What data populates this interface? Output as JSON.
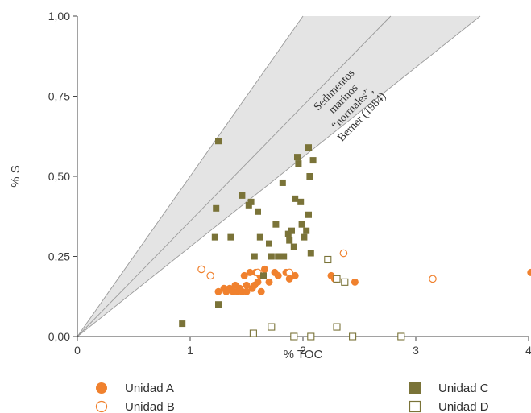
{
  "chart_data": {
    "type": "scatter",
    "xlabel": "% TOC",
    "ylabel": "% S",
    "xlim": [
      0,
      4
    ],
    "ylim": [
      0,
      1
    ],
    "x_ticks": [
      "0",
      "1",
      "2",
      "3",
      "4"
    ],
    "y_ticks": [
      "0,00",
      "0,25",
      "0,50",
      "0,75",
      "1,00"
    ],
    "band": {
      "label_lines": [
        "Sedimentos",
        "marinos",
        "“normales”,",
        "Berner (1984)"
      ],
      "lower_slope": 0.28,
      "center_slope": 0.36,
      "upper_slope": 0.5,
      "fill_color": "#e4e4e4",
      "line_color": "#9a9a9a"
    },
    "series": [
      {
        "name": "Unidad A",
        "marker": "filled-circle",
        "color": "#f0812e",
        "points": [
          [
            1.25,
            0.14
          ],
          [
            1.3,
            0.15
          ],
          [
            1.32,
            0.14
          ],
          [
            1.35,
            0.15
          ],
          [
            1.38,
            0.14
          ],
          [
            1.4,
            0.16
          ],
          [
            1.42,
            0.14
          ],
          [
            1.44,
            0.15
          ],
          [
            1.46,
            0.14
          ],
          [
            1.48,
            0.19
          ],
          [
            1.5,
            0.16
          ],
          [
            1.5,
            0.14
          ],
          [
            1.53,
            0.2
          ],
          [
            1.55,
            0.15
          ],
          [
            1.57,
            0.16
          ],
          [
            1.58,
            0.2
          ],
          [
            1.6,
            0.17
          ],
          [
            1.62,
            0.19
          ],
          [
            1.63,
            0.14
          ],
          [
            1.66,
            0.21
          ],
          [
            1.7,
            0.17
          ],
          [
            1.75,
            0.2
          ],
          [
            1.78,
            0.19
          ],
          [
            1.85,
            0.2
          ],
          [
            1.88,
            0.18
          ],
          [
            1.93,
            0.19
          ],
          [
            2.25,
            0.19
          ],
          [
            2.28,
            0.18
          ],
          [
            2.46,
            0.17
          ],
          [
            4.02,
            0.2
          ]
        ]
      },
      {
        "name": "Unidad B",
        "marker": "open-circle",
        "color": "#f0812e",
        "points": [
          [
            1.1,
            0.21
          ],
          [
            1.18,
            0.19
          ],
          [
            1.6,
            0.2
          ],
          [
            1.88,
            0.2
          ],
          [
            2.36,
            0.26
          ],
          [
            2.3,
            0.18
          ],
          [
            3.15,
            0.18
          ]
        ]
      },
      {
        "name": "Unidad C",
        "marker": "filled-square",
        "color": "#7a7338",
        "points": [
          [
            0.93,
            0.04
          ],
          [
            1.22,
            0.31
          ],
          [
            1.23,
            0.4
          ],
          [
            1.25,
            0.61
          ],
          [
            1.25,
            0.1
          ],
          [
            1.36,
            0.31
          ],
          [
            1.46,
            0.44
          ],
          [
            1.52,
            0.41
          ],
          [
            1.54,
            0.42
          ],
          [
            1.57,
            0.25
          ],
          [
            1.6,
            0.39
          ],
          [
            1.62,
            0.31
          ],
          [
            1.65,
            0.19
          ],
          [
            1.7,
            0.29
          ],
          [
            1.72,
            0.25
          ],
          [
            1.76,
            0.35
          ],
          [
            1.78,
            0.25
          ],
          [
            1.82,
            0.48
          ],
          [
            1.83,
            0.25
          ],
          [
            1.87,
            0.32
          ],
          [
            1.88,
            0.3
          ],
          [
            1.9,
            0.33
          ],
          [
            1.92,
            0.28
          ],
          [
            1.93,
            0.43
          ],
          [
            1.95,
            0.56
          ],
          [
            1.96,
            0.54
          ],
          [
            1.98,
            0.42
          ],
          [
            1.99,
            0.35
          ],
          [
            2.01,
            0.31
          ],
          [
            2.03,
            0.33
          ],
          [
            2.05,
            0.38
          ],
          [
            2.05,
            0.59
          ],
          [
            2.06,
            0.5
          ],
          [
            2.07,
            0.26
          ],
          [
            2.09,
            0.55
          ]
        ]
      },
      {
        "name": "Unidad D",
        "marker": "open-square",
        "color": "#7a7338",
        "points": [
          [
            1.56,
            0.01
          ],
          [
            1.72,
            0.03
          ],
          [
            1.92,
            0.0
          ],
          [
            2.07,
            0.0
          ],
          [
            2.22,
            0.24
          ],
          [
            2.3,
            0.18
          ],
          [
            2.3,
            0.03
          ],
          [
            2.37,
            0.17
          ],
          [
            2.44,
            0.0
          ],
          [
            2.87,
            0.0
          ]
        ]
      }
    ]
  }
}
